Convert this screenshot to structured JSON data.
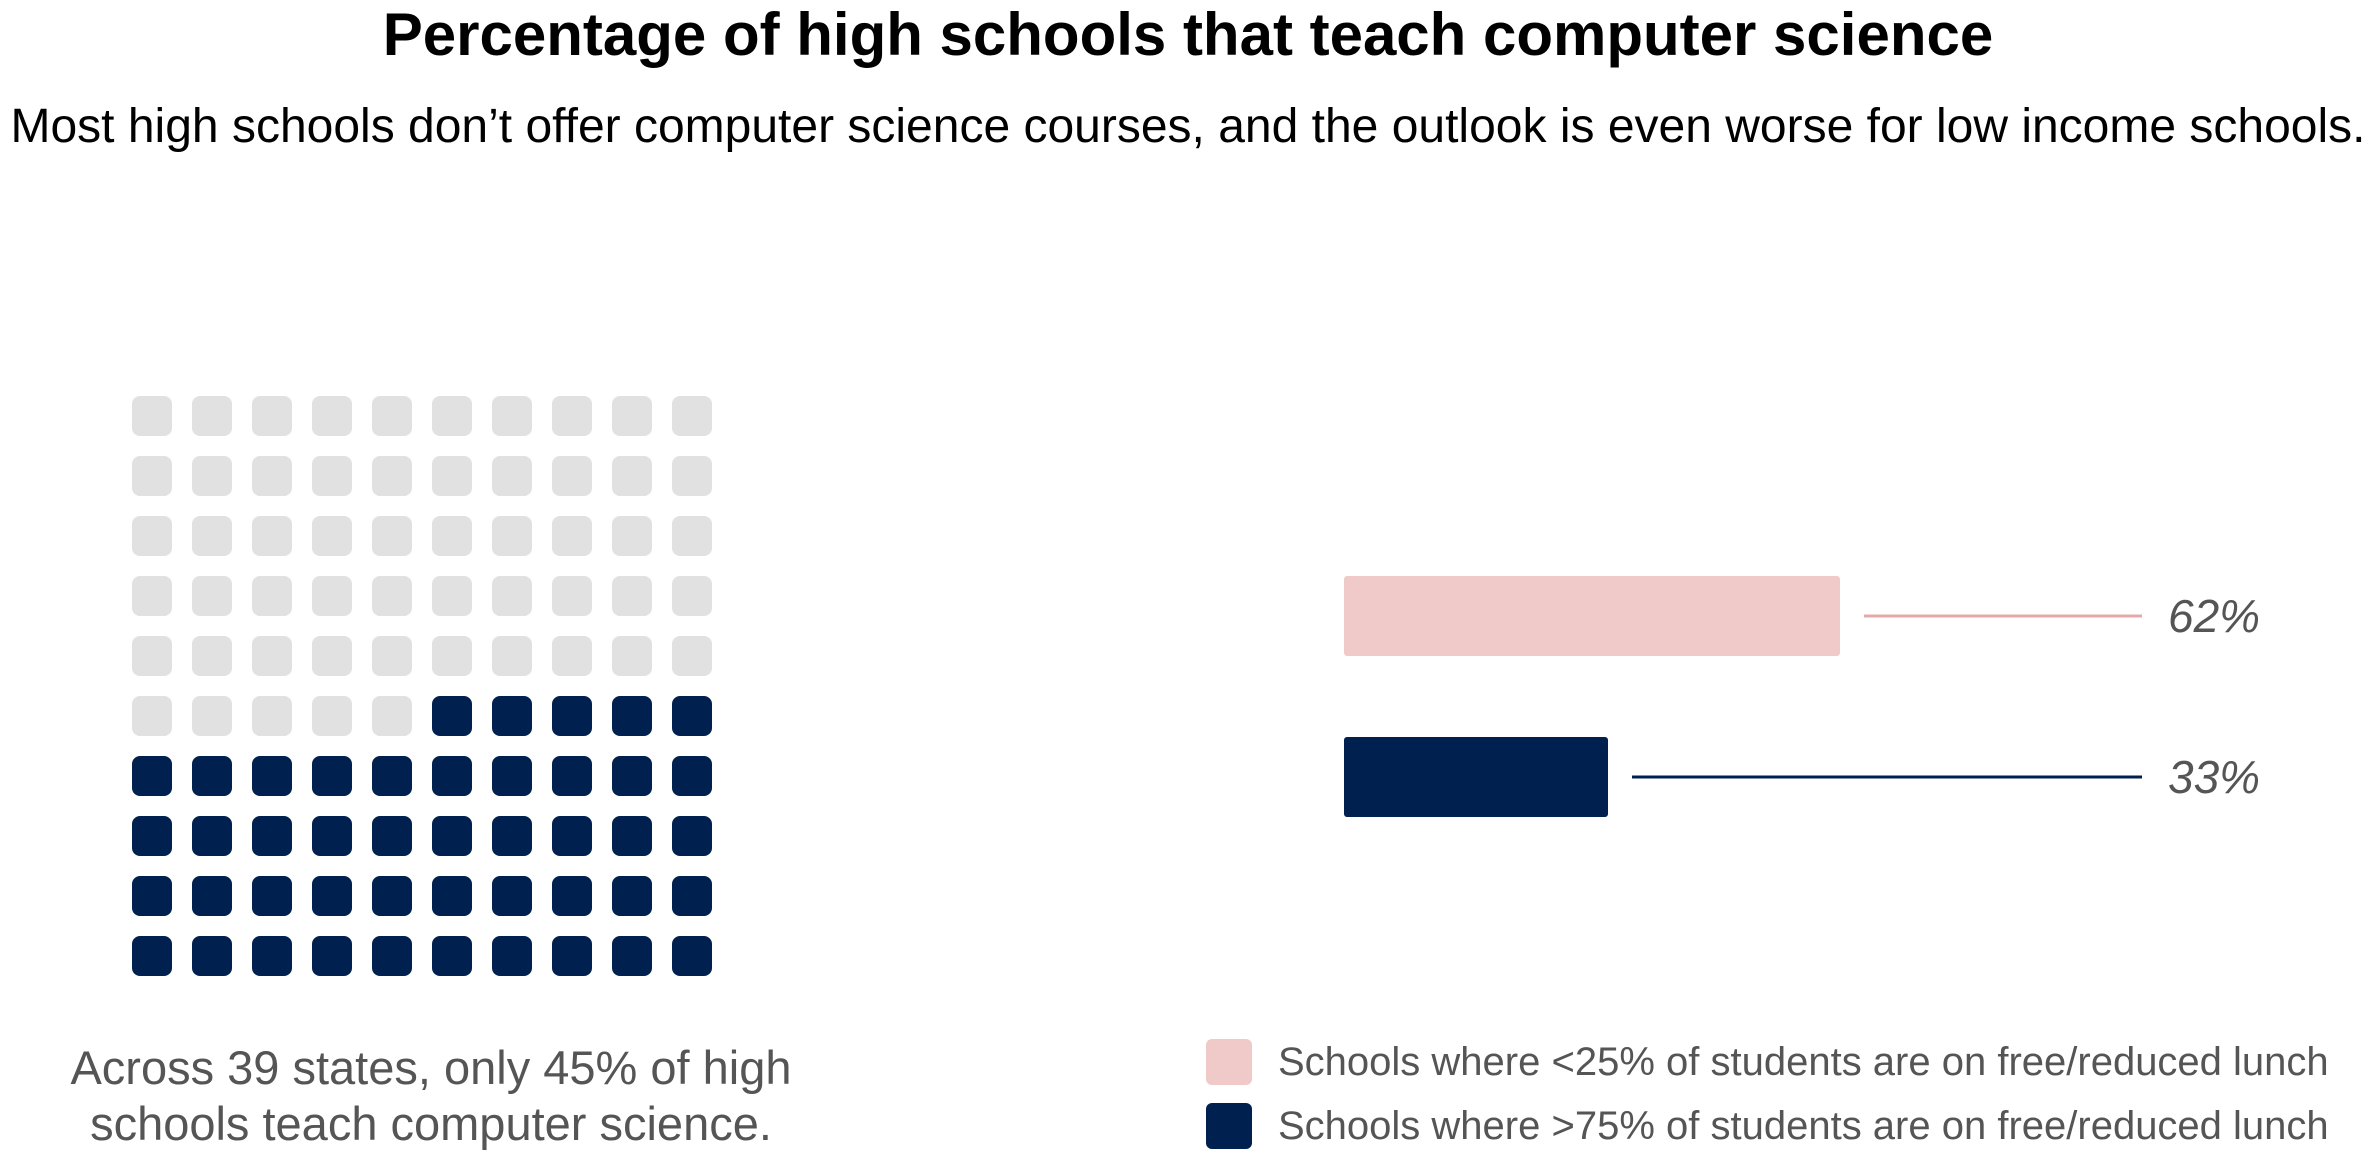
{
  "title": "Percentage of high schools that teach computer science",
  "subtitle": "Most high schools don’t offer computer science courses, and the outlook is even worse for low income schools.",
  "colors": {
    "filled": "#00214f",
    "empty": "#e1e1e1",
    "low_income_bar": "#f0c9c9",
    "high_income_line": "#00214f"
  },
  "chart_data": [
    {
      "type": "waffle",
      "total_cells": 100,
      "filled_cells": 45,
      "value_percent": 45,
      "caption": "Across 39 states, only 45% of high schools teach computer science."
    },
    {
      "type": "bar",
      "orientation": "horizontal",
      "categories": [
        "Schools where <25% of students are on free/reduced lunch",
        "Schools where >75% of students are on free/reduced lunch"
      ],
      "values": [
        62,
        33
      ],
      "value_labels": [
        "62%",
        "33%"
      ],
      "xlim": [
        0,
        100
      ],
      "legend": {
        "position": "bottom-right",
        "entries": [
          "Schools where <25% of students are on free/reduced lunch",
          "Schools where >75% of students are on free/reduced lunch"
        ]
      }
    }
  ]
}
